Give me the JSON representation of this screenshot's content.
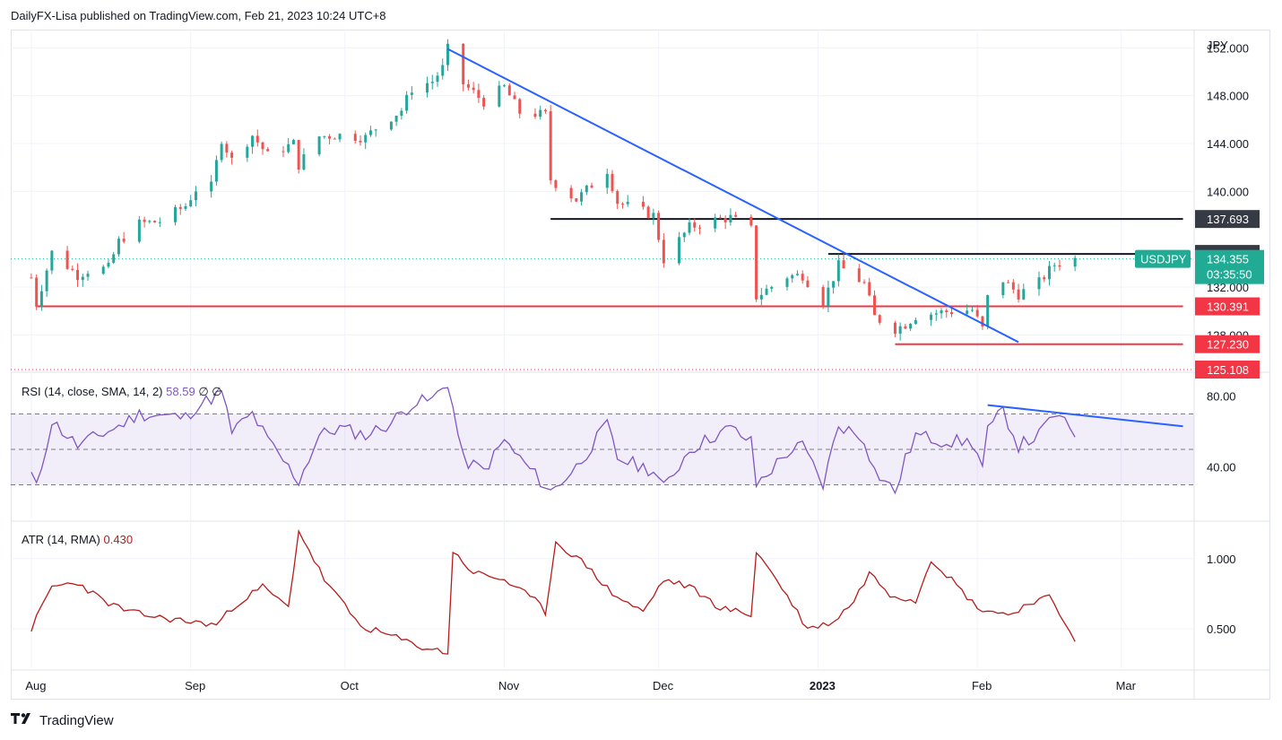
{
  "header": {
    "text": "DailyFX-Lisa published on TradingView.com, Feb 21, 2023 10:24 UTC+8"
  },
  "footer": {
    "brand": "TradingView",
    "logo_icon": "tradingview-logo-icon"
  },
  "colors": {
    "candle_up": "#26a69a",
    "candle_down": "#ef5350",
    "trendline": "#2962ff",
    "resistance": "#131722",
    "support": "#f23645",
    "rsi": "#7e57c2",
    "atr": "#b71c1c",
    "price_badge": "#22ab94"
  },
  "chart_data": [
    {
      "type": "candlestick",
      "symbol": "USDJPY",
      "currency": "JPY",
      "ylim": [
        125.108,
        153.0
      ],
      "y_ticks": [
        "152.000",
        "148.000",
        "144.000",
        "140.000",
        "132.000",
        "128.000"
      ],
      "x_ticks": [
        "Aug",
        "Sep",
        "Oct",
        "Nov",
        "Dec",
        "2023",
        "Feb",
        "Mar"
      ],
      "last_price": "134.355",
      "countdown": "03:35:50",
      "price_levels": [
        {
          "label": "137.693",
          "value": 137.693,
          "kind": "resistance"
        },
        {
          "label": "134.772",
          "value": 134.772,
          "kind": "resistance"
        },
        {
          "label": "130.391",
          "value": 130.391,
          "kind": "support"
        },
        {
          "label": "127.230",
          "value": 127.23,
          "kind": "support"
        },
        {
          "label": "125.108",
          "value": 125.108,
          "kind": "support"
        }
      ],
      "path": [
        [
          "2022-08-01",
          132.8
        ],
        [
          "2022-08-02",
          130.6
        ],
        [
          "2022-08-05",
          134.9
        ],
        [
          "2022-08-10",
          133.0
        ],
        [
          "2022-08-12",
          133.4
        ],
        [
          "2022-08-16",
          133.6
        ],
        [
          "2022-08-18",
          135.8
        ],
        [
          "2022-08-22",
          137.3
        ],
        [
          "2022-08-26",
          137.5
        ],
        [
          "2022-08-31",
          138.8
        ],
        [
          "2022-09-02",
          140.2
        ],
        [
          "2022-09-05",
          140.4
        ],
        [
          "2022-09-07",
          144.4
        ],
        [
          "2022-09-09",
          142.6
        ],
        [
          "2022-09-13",
          144.7
        ],
        [
          "2022-09-16",
          143.0
        ],
        [
          "2022-09-21",
          144.0
        ],
        [
          "2022-09-22",
          142.2
        ],
        [
          "2022-09-26",
          144.6
        ],
        [
          "2022-09-30",
          144.7
        ],
        [
          "2022-10-05",
          144.5
        ],
        [
          "2022-10-07",
          145.3
        ],
        [
          "2022-10-12",
          146.8
        ],
        [
          "2022-10-14",
          148.6
        ],
        [
          "2022-10-18",
          149.2
        ],
        [
          "2022-10-20",
          150.3
        ],
        [
          "2022-10-21",
          151.9
        ],
        [
          "2022-10-24",
          149.0
        ],
        [
          "2022-10-28",
          147.5
        ],
        [
          "2022-11-01",
          148.7
        ],
        [
          "2022-11-04",
          146.6
        ],
        [
          "2022-11-09",
          146.4
        ],
        [
          "2022-11-10",
          141.0
        ],
        [
          "2022-11-15",
          139.3
        ],
        [
          "2022-11-21",
          141.8
        ],
        [
          "2022-11-23",
          139.1
        ],
        [
          "2022-11-30",
          138.0
        ],
        [
          "2022-12-02",
          134.3
        ],
        [
          "2022-12-07",
          137.0
        ],
        [
          "2022-12-12",
          137.6
        ],
        [
          "2022-12-15",
          137.8
        ],
        [
          "2022-12-19",
          136.8
        ],
        [
          "2022-12-20",
          131.2
        ],
        [
          "2022-12-26",
          132.9
        ],
        [
          "2022-12-29",
          133.0
        ],
        [
          "2023-01-02",
          130.8
        ],
        [
          "2023-01-05",
          133.8
        ],
        [
          "2023-01-10",
          132.3
        ],
        [
          "2023-01-12",
          129.5
        ],
        [
          "2023-01-16",
          128.5
        ],
        [
          "2023-01-18",
          128.9
        ],
        [
          "2023-01-20",
          129.6
        ],
        [
          "2023-01-25",
          129.9
        ],
        [
          "2023-01-31",
          130.1
        ],
        [
          "2023-02-02",
          128.5
        ],
        [
          "2023-02-03",
          131.1
        ],
        [
          "2023-02-06",
          132.6
        ],
        [
          "2023-02-09",
          131.4
        ],
        [
          "2023-02-13",
          132.4
        ],
        [
          "2023-02-16",
          133.9
        ],
        [
          "2023-02-20",
          134.355
        ]
      ],
      "trendlines": [
        {
          "from": [
            "2022-10-21",
            151.9
          ],
          "to": [
            "2023-02-09",
            127.4
          ],
          "color": "trendline"
        },
        {
          "from": [
            "2022-11-10",
            137.693
          ],
          "to": [
            "2023-03-13",
            137.693
          ],
          "color": "resistance"
        },
        {
          "from": [
            "2023-01-03",
            134.772
          ],
          "to": [
            "2023-03-13",
            134.772
          ],
          "color": "resistance"
        },
        {
          "from": [
            "2022-08-02",
            130.391
          ],
          "to": [
            "2023-03-13",
            130.391
          ],
          "color": "support"
        },
        {
          "from": [
            "2023-01-16",
            127.23
          ],
          "to": [
            "2023-03-13",
            127.23
          ],
          "color": "support"
        }
      ]
    },
    {
      "type": "line",
      "label": "RSI (14, close, SMA, 14, 2)",
      "value": "58.59",
      "extra": [
        "∅",
        "∅"
      ],
      "ylim": [
        10,
        92
      ],
      "y_ticks": [
        "80.00",
        "40.00"
      ],
      "bands": [
        70,
        50,
        30
      ],
      "path": [
        [
          "2022-08-01",
          36
        ],
        [
          "2022-08-02",
          28
        ],
        [
          "2022-08-05",
          66
        ],
        [
          "2022-08-10",
          52
        ],
        [
          "2022-08-12",
          55
        ],
        [
          "2022-08-18",
          63
        ],
        [
          "2022-08-22",
          70
        ],
        [
          "2022-08-31",
          68
        ],
        [
          "2022-09-02",
          74
        ],
        [
          "2022-09-07",
          82
        ],
        [
          "2022-09-09",
          60
        ],
        [
          "2022-09-13",
          70
        ],
        [
          "2022-09-16",
          55
        ],
        [
          "2022-09-22",
          32
        ],
        [
          "2022-09-26",
          58
        ],
        [
          "2022-09-30",
          62
        ],
        [
          "2022-10-05",
          58
        ],
        [
          "2022-10-10",
          65
        ],
        [
          "2022-10-14",
          76
        ],
        [
          "2022-10-18",
          78
        ],
        [
          "2022-10-21",
          88
        ],
        [
          "2022-10-24",
          44
        ],
        [
          "2022-10-28",
          38
        ],
        [
          "2022-11-01",
          55
        ],
        [
          "2022-11-04",
          45
        ],
        [
          "2022-11-10",
          26
        ],
        [
          "2022-11-15",
          40
        ],
        [
          "2022-11-21",
          64
        ],
        [
          "2022-11-23",
          45
        ],
        [
          "2022-11-30",
          38
        ],
        [
          "2022-12-02",
          28
        ],
        [
          "2022-12-07",
          50
        ],
        [
          "2022-12-12",
          58
        ],
        [
          "2022-12-15",
          62
        ],
        [
          "2022-12-19",
          54
        ],
        [
          "2022-12-20",
          30
        ],
        [
          "2022-12-26",
          48
        ],
        [
          "2022-12-29",
          52
        ],
        [
          "2023-01-02",
          30
        ],
        [
          "2023-01-05",
          64
        ],
        [
          "2023-01-10",
          56
        ],
        [
          "2023-01-12",
          38
        ],
        [
          "2023-01-16",
          26
        ],
        [
          "2023-01-18",
          44
        ],
        [
          "2023-01-20",
          58
        ],
        [
          "2023-01-25",
          55
        ],
        [
          "2023-01-31",
          54
        ],
        [
          "2023-02-02",
          40
        ],
        [
          "2023-02-03",
          60
        ],
        [
          "2023-02-06",
          72
        ],
        [
          "2023-02-09",
          52
        ],
        [
          "2023-02-13",
          58
        ],
        [
          "2023-02-16",
          70
        ],
        [
          "2023-02-20",
          58.59
        ]
      ],
      "trendlines": [
        {
          "from": [
            "2023-02-03",
            75
          ],
          "to": [
            "2023-03-13",
            63
          ],
          "color": "trendline"
        }
      ]
    },
    {
      "type": "line",
      "label": "ATR (14, RMA)",
      "value": "0.430",
      "ylim": [
        0.22,
        1.26
      ],
      "y_ticks": [
        "1.000",
        "0.500"
      ],
      "path": [
        [
          "2022-08-01",
          0.5
        ],
        [
          "2022-08-05",
          0.8
        ],
        [
          "2022-08-10",
          0.83
        ],
        [
          "2022-08-15",
          0.7
        ],
        [
          "2022-08-20",
          0.62
        ],
        [
          "2022-08-26",
          0.58
        ],
        [
          "2022-09-01",
          0.55
        ],
        [
          "2022-09-06",
          0.53
        ],
        [
          "2022-09-10",
          0.68
        ],
        [
          "2022-09-15",
          0.8
        ],
        [
          "2022-09-20",
          0.65
        ],
        [
          "2022-09-22",
          1.2
        ],
        [
          "2022-09-27",
          0.85
        ],
        [
          "2022-10-04",
          0.52
        ],
        [
          "2022-10-10",
          0.45
        ],
        [
          "2022-10-15",
          0.38
        ],
        [
          "2022-10-21",
          0.33
        ],
        [
          "2022-10-22",
          1.05
        ],
        [
          "2022-10-26",
          0.9
        ],
        [
          "2022-11-01",
          0.85
        ],
        [
          "2022-11-07",
          0.7
        ],
        [
          "2022-11-09",
          0.62
        ],
        [
          "2022-11-11",
          1.12
        ],
        [
          "2022-11-17",
          0.95
        ],
        [
          "2022-11-22",
          0.75
        ],
        [
          "2022-11-28",
          0.62
        ],
        [
          "2022-12-02",
          0.85
        ],
        [
          "2022-12-07",
          0.8
        ],
        [
          "2022-12-13",
          0.65
        ],
        [
          "2022-12-19",
          0.6
        ],
        [
          "2022-12-20",
          1.05
        ],
        [
          "2022-12-24",
          0.85
        ],
        [
          "2022-12-30",
          0.5
        ],
        [
          "2023-01-04",
          0.55
        ],
        [
          "2023-01-08",
          0.7
        ],
        [
          "2023-01-11",
          0.9
        ],
        [
          "2023-01-15",
          0.75
        ],
        [
          "2023-01-20",
          0.7
        ],
        [
          "2023-01-23",
          1.0
        ],
        [
          "2023-01-27",
          0.85
        ],
        [
          "2023-02-01",
          0.65
        ],
        [
          "2023-02-07",
          0.6
        ],
        [
          "2023-02-12",
          0.7
        ],
        [
          "2023-02-15",
          0.72
        ],
        [
          "2023-02-18",
          0.55
        ],
        [
          "2023-02-20",
          0.43
        ]
      ]
    }
  ]
}
